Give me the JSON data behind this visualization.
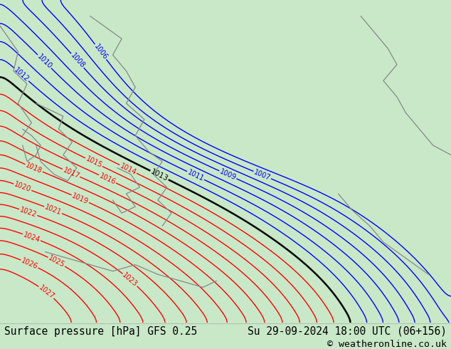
{
  "title_left": "Surface pressure [hPa] GFS 0.25",
  "title_right": "Su 29-09-2024 18:00 UTC (06+156)",
  "copyright": "© weatheronline.co.uk",
  "map_bg": "#c8e8c8",
  "bottom_bar_color": "#ffffff",
  "bottom_text_color": "#000000",
  "font_size_bottom": 10.5,
  "fig_width": 6.34,
  "fig_height": 4.9,
  "dpi": 100,
  "blue_levels": [
    1006,
    1007,
    1008,
    1009,
    1010,
    1011,
    1012
  ],
  "black_levels": [
    1013
  ],
  "red_levels": [
    1014,
    1015,
    1016,
    1017,
    1018,
    1019,
    1020,
    1021,
    1022,
    1023,
    1024,
    1025,
    1026,
    1027
  ]
}
